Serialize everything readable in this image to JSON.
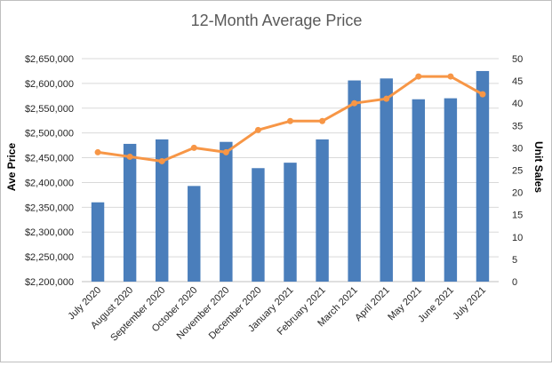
{
  "chart_data": {
    "type": "bar",
    "title": "12-Month Average Price",
    "ylabel": "Ave Price",
    "y2label": "Unit Sales",
    "categories": [
      "July 2020",
      "August 2020",
      "September 2020",
      "October 2020",
      "November 2020",
      "December 2020",
      "January 2021",
      "February 2021",
      "March 2021",
      "April 2021",
      "May 2021",
      "June 2021",
      "July 2021"
    ],
    "ylim": [
      2200000,
      2650000
    ],
    "y_ticks": [
      "$2,200,000",
      "$2,250,000",
      "$2,300,000",
      "$2,350,000",
      "$2,400,000",
      "$2,450,000",
      "$2,500,000",
      "$2,550,000",
      "$2,600,000",
      "$2,650,000"
    ],
    "y2lim": [
      0,
      50
    ],
    "y2_ticks": [
      "0",
      "5",
      "10",
      "15",
      "20",
      "25",
      "30",
      "35",
      "40",
      "45",
      "50"
    ],
    "grid": true,
    "series": [
      {
        "axis": "left",
        "type": "bar",
        "color": "#4a7ebb",
        "values": [
          2360000,
          2478000,
          2487000,
          2393000,
          2482000,
          2429000,
          2440000,
          2487000,
          2606000,
          2610000,
          2568000,
          2570000,
          2625000
        ]
      },
      {
        "axis": "right",
        "type": "line",
        "color": "#f79646",
        "values": [
          29,
          28,
          27,
          30,
          29,
          34,
          36,
          36,
          40,
          41,
          46,
          46,
          42
        ]
      }
    ]
  }
}
